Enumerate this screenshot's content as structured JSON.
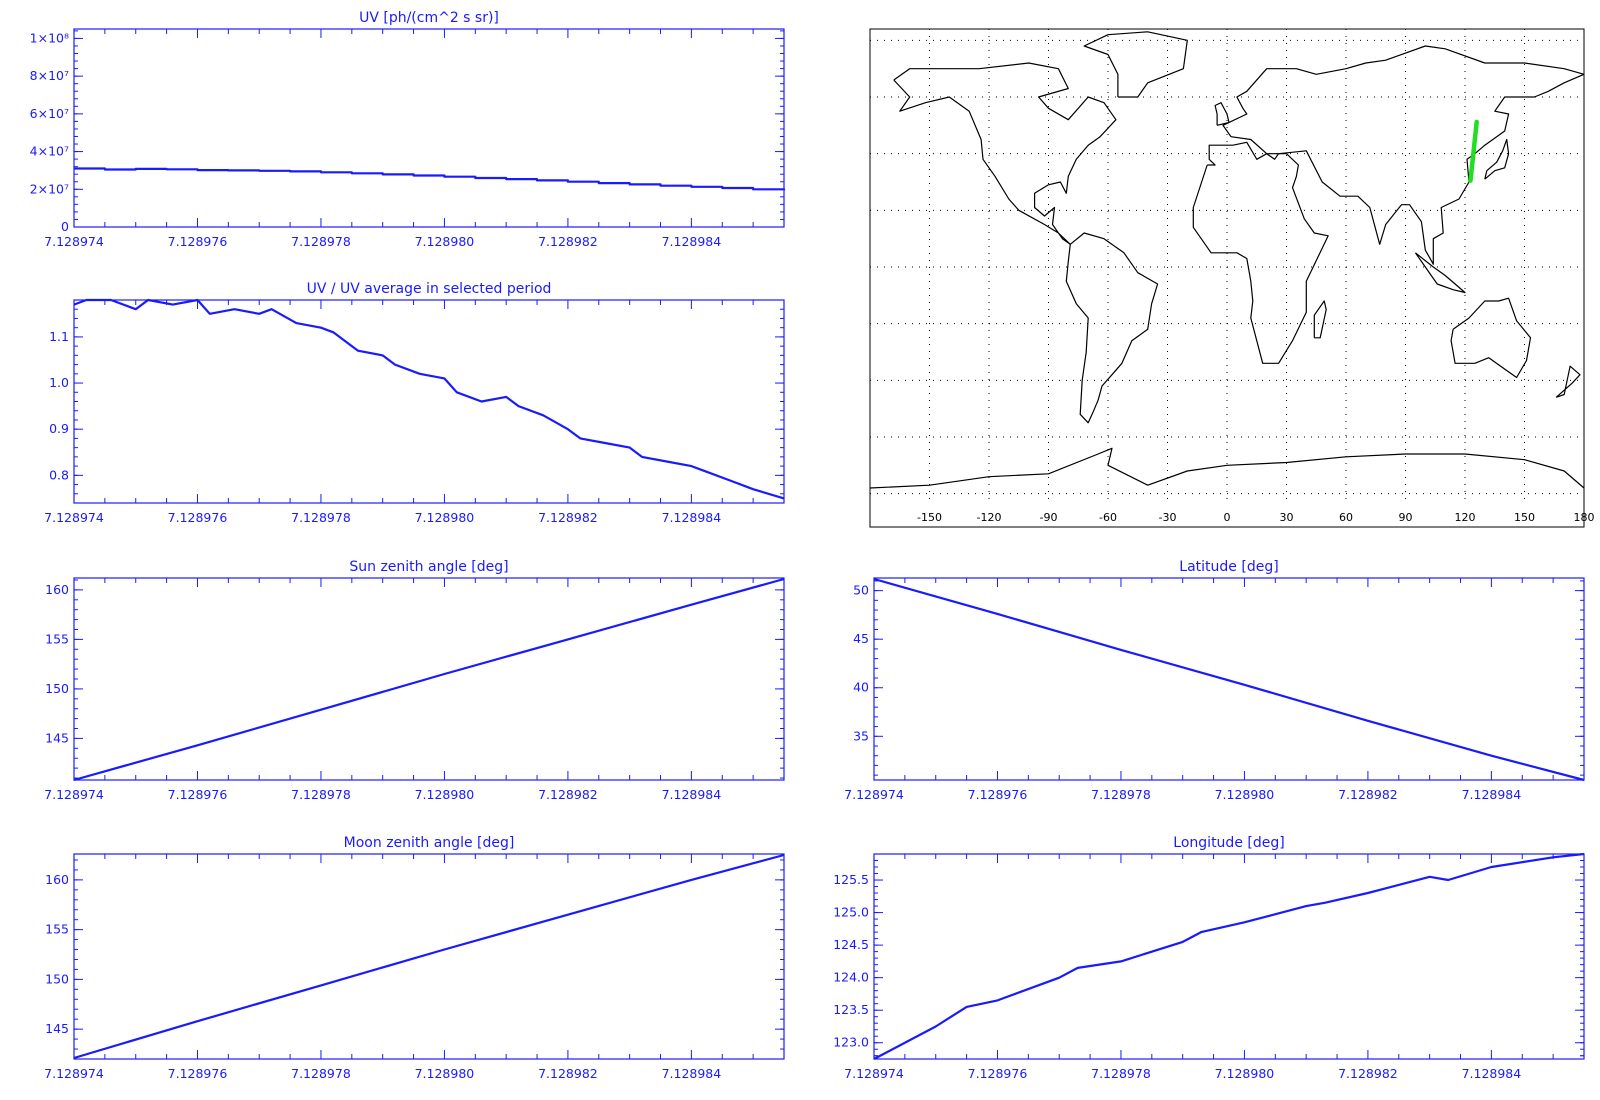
{
  "x_ticks": [
    "7.128974",
    "7.128976",
    "7.128978",
    "7.128980",
    "7.128982",
    "7.128984"
  ],
  "plot_color": "#1a1aff",
  "track_color": "#22dd22",
  "chart_data": [
    {
      "type": "line",
      "title": "UV [ph/(cm^2 s sr)]",
      "xlim": [
        7.128974,
        7.1289855
      ],
      "ylim": [
        0,
        105000000
      ],
      "y_ticks": [
        {
          "value": 0,
          "label": "0"
        },
        {
          "value": 20000000,
          "label": "2×10⁷"
        },
        {
          "value": 40000000,
          "label": "4×10⁷"
        },
        {
          "value": 60000000,
          "label": "6×10⁷"
        },
        {
          "value": 80000000,
          "label": "8×10⁷"
        },
        {
          "value": 100000000,
          "label": "1×10⁸"
        }
      ],
      "step": true,
      "series": [
        {
          "x": [
            7.128974,
            7.1289745,
            7.128975,
            7.1289755,
            7.128976,
            7.1289765,
            7.128977,
            7.1289775,
            7.128978,
            7.1289785,
            7.128979,
            7.1289795,
            7.12898,
            7.1289805,
            7.128981,
            7.1289815,
            7.128982,
            7.1289825,
            7.128983,
            7.1289835,
            7.128984,
            7.1289845,
            7.128985,
            7.1289855
          ],
          "values": [
            31000000,
            30500000,
            30800000,
            30600000,
            30200000,
            30000000,
            29800000,
            29500000,
            29000000,
            28500000,
            27900000,
            27300000,
            26700000,
            26000000,
            25400000,
            24700000,
            24000000,
            23300000,
            22600000,
            21900000,
            21300000,
            20700000,
            20000000,
            19500000
          ]
        }
      ]
    },
    {
      "type": "line",
      "title": "UV / UV average in selected period",
      "xlim": [
        7.128974,
        7.1289855
      ],
      "ylim": [
        0.74,
        1.18
      ],
      "y_ticks": [
        {
          "value": 0.8,
          "label": "0.8"
        },
        {
          "value": 0.9,
          "label": "0.9"
        },
        {
          "value": 1.0,
          "label": "1.0"
        },
        {
          "value": 1.1,
          "label": "1.1"
        }
      ],
      "series": [
        {
          "x": [
            7.128974,
            7.1289742,
            7.1289746,
            7.128975,
            7.1289752,
            7.1289756,
            7.128976,
            7.1289762,
            7.1289766,
            7.128977,
            7.1289772,
            7.1289776,
            7.128978,
            7.1289782,
            7.1289786,
            7.128979,
            7.1289792,
            7.1289796,
            7.12898,
            7.1289802,
            7.1289806,
            7.128981,
            7.1289812,
            7.1289816,
            7.128982,
            7.1289822,
            7.1289826,
            7.128983,
            7.1289832,
            7.1289836,
            7.128984,
            7.1289842,
            7.1289846,
            7.128985,
            7.1289855
          ],
          "values": [
            1.17,
            1.18,
            1.18,
            1.16,
            1.18,
            1.17,
            1.18,
            1.15,
            1.16,
            1.15,
            1.16,
            1.13,
            1.12,
            1.11,
            1.07,
            1.06,
            1.04,
            1.02,
            1.01,
            0.98,
            0.96,
            0.97,
            0.95,
            0.93,
            0.9,
            0.88,
            0.87,
            0.86,
            0.84,
            0.83,
            0.82,
            0.81,
            0.79,
            0.77,
            0.75
          ]
        }
      ]
    },
    {
      "type": "line",
      "title": "Sun zenith angle [deg]",
      "xlim": [
        7.128974,
        7.1289855
      ],
      "ylim": [
        140.8,
        161.2
      ],
      "y_ticks": [
        {
          "value": 145,
          "label": "145"
        },
        {
          "value": 150,
          "label": "150"
        },
        {
          "value": 155,
          "label": "155"
        },
        {
          "value": 160,
          "label": "160"
        }
      ],
      "series": [
        {
          "x": [
            7.128974,
            7.128976,
            7.128978,
            7.12898,
            7.128982,
            7.128984,
            7.1289855
          ],
          "values": [
            140.8,
            144.3,
            147.9,
            151.5,
            155.0,
            158.5,
            161.1
          ]
        }
      ]
    },
    {
      "type": "line",
      "title": "Latitude [deg]",
      "xlim": [
        7.128974,
        7.1289855
      ],
      "ylim": [
        30.5,
        51.3
      ],
      "y_ticks": [
        {
          "value": 35,
          "label": "35"
        },
        {
          "value": 40,
          "label": "40"
        },
        {
          "value": 45,
          "label": "45"
        },
        {
          "value": 50,
          "label": "50"
        }
      ],
      "series": [
        {
          "x": [
            7.128974,
            7.128976,
            7.128978,
            7.12898,
            7.128982,
            7.128984,
            7.1289855
          ],
          "values": [
            51.2,
            47.6,
            43.9,
            40.3,
            36.6,
            33.0,
            30.5
          ]
        }
      ]
    },
    {
      "type": "line",
      "title": "Moon zenith angle [deg]",
      "xlim": [
        7.128974,
        7.1289855
      ],
      "ylim": [
        142.0,
        162.6
      ],
      "y_ticks": [
        {
          "value": 145,
          "label": "145"
        },
        {
          "value": 150,
          "label": "150"
        },
        {
          "value": 155,
          "label": "155"
        },
        {
          "value": 160,
          "label": "160"
        }
      ],
      "series": [
        {
          "x": [
            7.128974,
            7.128976,
            7.128978,
            7.12898,
            7.128982,
            7.128984,
            7.1289855
          ],
          "values": [
            142.1,
            145.8,
            149.4,
            153.0,
            156.5,
            160.0,
            162.5
          ]
        }
      ]
    },
    {
      "type": "line",
      "title": "Longitude [deg]",
      "xlim": [
        7.128974,
        7.1289855
      ],
      "ylim": [
        122.75,
        125.9
      ],
      "y_ticks": [
        {
          "value": 123.0,
          "label": "123.0"
        },
        {
          "value": 123.5,
          "label": "123.5"
        },
        {
          "value": 124.0,
          "label": "124.0"
        },
        {
          "value": 124.5,
          "label": "124.5"
        },
        {
          "value": 125.0,
          "label": "125.0"
        },
        {
          "value": 125.5,
          "label": "125.5"
        }
      ],
      "series": [
        {
          "x": [
            7.128974,
            7.128975,
            7.1289755,
            7.128976,
            7.128977,
            7.1289773,
            7.128978,
            7.128979,
            7.1289793,
            7.12898,
            7.128981,
            7.1289813,
            7.128982,
            7.128983,
            7.1289833,
            7.128984,
            7.128985,
            7.1289855
          ],
          "values": [
            122.75,
            123.25,
            123.55,
            123.65,
            124.0,
            124.15,
            124.25,
            124.55,
            124.7,
            124.85,
            125.1,
            125.15,
            125.3,
            125.55,
            125.5,
            125.7,
            125.85,
            125.9
          ]
        }
      ]
    },
    {
      "type": "map",
      "lon_ticks": [
        "-150",
        "-120",
        "-90",
        "-60",
        "-30",
        "0",
        "30",
        "60",
        "90",
        "120",
        "150",
        "180"
      ],
      "lon_values": [
        -150,
        -120,
        -90,
        -60,
        -30,
        0,
        30,
        60,
        90,
        120,
        150,
        180
      ],
      "lat_grid": [
        -80,
        -60,
        -40,
        -20,
        0,
        20,
        40,
        60,
        80
      ],
      "track": {
        "lon": [
          125.9,
          122.75
        ],
        "lat": [
          51.2,
          30.5
        ]
      }
    }
  ]
}
